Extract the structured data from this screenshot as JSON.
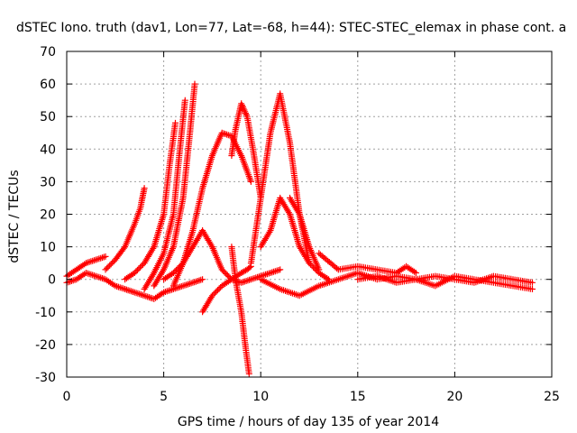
{
  "chart_data": {
    "type": "scatter",
    "title": "dSTEC Iono. truth (dav1, Lon=77, Lat=-68, h=44): STEC-STEC_elemax in phase cont. a",
    "xlabel": "GPS time / hours of day 135 of year 2014",
    "ylabel": "dSTEC  / TECUs",
    "xlim": [
      0,
      25
    ],
    "ylim": [
      -30,
      70
    ],
    "x_ticks": [
      "0",
      "5",
      "10",
      "15",
      "20",
      "25"
    ],
    "y_ticks": [
      "70",
      "60",
      "50",
      "40",
      "30",
      "20",
      "10",
      "0",
      "-10",
      "-20",
      "-30"
    ],
    "grid": true,
    "marker": "+",
    "color": "#ff0000",
    "series": [
      {
        "x": [
          0.0,
          0.5,
          1.0,
          1.5,
          2.0,
          2.5,
          3.0,
          3.5,
          4.0,
          4.5,
          5.0,
          5.5,
          6.0,
          6.5,
          7.0
        ],
        "values": [
          -1,
          0,
          2,
          1,
          0,
          -2,
          -3,
          -4,
          -5,
          -6,
          -4,
          -3,
          -2,
          -1,
          0
        ]
      },
      {
        "x": [
          0.0,
          0.5,
          1.0,
          1.5,
          2.0
        ],
        "values": [
          1,
          3,
          5,
          6,
          7
        ]
      },
      {
        "x": [
          2.0,
          2.5,
          3.0,
          3.5,
          3.8,
          4.0
        ],
        "values": [
          3,
          6,
          10,
          17,
          22,
          28
        ]
      },
      {
        "x": [
          3.0,
          3.5,
          4.0,
          4.5,
          5.0,
          5.3,
          5.6
        ],
        "values": [
          0,
          2,
          5,
          10,
          20,
          35,
          48
        ]
      },
      {
        "x": [
          4.0,
          4.5,
          5.0,
          5.5,
          5.8,
          6.1
        ],
        "values": [
          -3,
          2,
          8,
          20,
          38,
          55
        ]
      },
      {
        "x": [
          4.5,
          5.0,
          5.5,
          6.0,
          6.3,
          6.6
        ],
        "values": [
          -2,
          3,
          10,
          25,
          42,
          60
        ]
      },
      {
        "x": [
          5.5,
          6.0,
          6.5,
          7.0,
          7.5,
          8.0,
          8.5,
          9.0,
          9.5
        ],
        "values": [
          -2,
          5,
          15,
          28,
          38,
          45,
          44,
          38,
          30
        ]
      },
      {
        "x": [
          5.0,
          5.5,
          6.0,
          6.5,
          7.0,
          7.5,
          8.0,
          8.5,
          9.0,
          9.5,
          10.0,
          10.5,
          11.0
        ],
        "values": [
          0,
          2,
          5,
          10,
          15,
          10,
          3,
          0,
          -1,
          0,
          1,
          2,
          3
        ]
      },
      {
        "x": [
          7.0,
          7.5,
          8.0,
          8.5,
          9.0,
          9.3,
          9.5
        ],
        "values": [
          -10,
          -5,
          -2,
          0,
          2,
          3,
          4
        ]
      },
      {
        "x": [
          8.5,
          8.7,
          9.0,
          9.2,
          9.4
        ],
        "values": [
          10,
          0,
          -10,
          -20,
          -29
        ]
      },
      {
        "x": [
          8.5,
          8.7,
          9.0,
          9.3,
          9.6,
          10.0
        ],
        "values": [
          38,
          46,
          54,
          50,
          40,
          25
        ]
      },
      {
        "x": [
          9.5,
          10.0,
          10.5,
          11.0,
          11.5,
          12.0,
          12.5
        ],
        "values": [
          5,
          25,
          45,
          57,
          42,
          20,
          5
        ]
      },
      {
        "x": [
          10.0,
          10.5,
          11.0,
          11.5,
          12.0,
          12.5,
          13.0,
          13.5
        ],
        "values": [
          10,
          15,
          25,
          20,
          10,
          5,
          2,
          0
        ]
      },
      {
        "x": [
          11.5,
          12.0,
          12.5,
          13.0
        ],
        "values": [
          25,
          20,
          10,
          3
        ]
      },
      {
        "x": [
          10.0,
          11.0,
          12.0,
          13.0,
          14.0,
          15.0,
          16.0,
          17.0,
          18.0,
          19.0,
          20.0,
          21.0,
          22.0,
          23.0,
          24.0
        ],
        "values": [
          0,
          -3,
          -5,
          -2,
          0,
          2,
          0,
          1,
          0,
          -2,
          1,
          0,
          -1,
          -2,
          -3
        ]
      },
      {
        "x": [
          13.0,
          14.0,
          15.0,
          16.0,
          17.0,
          17.5,
          18.0
        ],
        "values": [
          8,
          3,
          4,
          3,
          2,
          4,
          2
        ]
      },
      {
        "x": [
          15.0,
          16.0,
          17.0,
          18.0,
          19.0,
          20.0,
          21.0,
          22.0,
          23.0,
          24.0
        ],
        "values": [
          0,
          1,
          -1,
          0,
          1,
          0,
          -1,
          1,
          0,
          -1
        ]
      }
    ]
  }
}
